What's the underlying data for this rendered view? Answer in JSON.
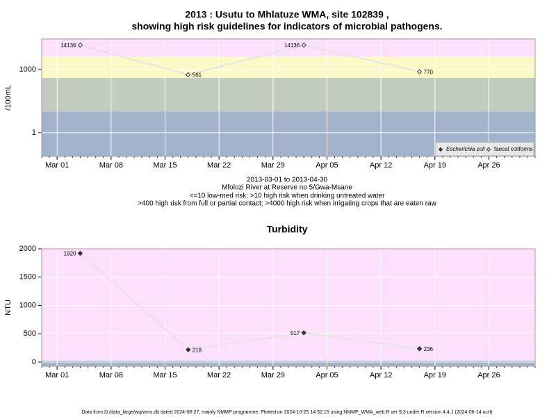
{
  "chart_data": [
    {
      "type": "scatter",
      "title": [
        "2013 : Usutu to Mhlatuze WMA, site 102839 ,",
        "showing high risk guidelines for indicators of microbial pathogens."
      ],
      "y_label": "/100mL",
      "log_y": true,
      "x": [
        "Mar 04",
        "Mar 18",
        "Apr 02",
        "Apr 17"
      ],
      "series": [
        {
          "name": "Escherichia coli",
          "marker": "filled",
          "color": "#333333",
          "values": [
            null,
            null,
            null,
            null
          ]
        },
        {
          "name": "faecal coliforms",
          "marker": "open",
          "color": "#333333",
          "values": [
            14136,
            561,
            14136,
            770
          ]
        }
      ],
      "xlim": [
        "Feb 27",
        "May 02"
      ],
      "xticks": [
        "Mar 01",
        "Mar 08",
        "Mar 15",
        "Mar 22",
        "Mar 29",
        "Apr 05",
        "Apr 12",
        "Apr 19",
        "Apr 26"
      ],
      "ylim": [
        0.075,
        28000
      ],
      "yticks": [
        1,
        1000
      ],
      "bands": [
        {
          "range": [
            0.075,
            10
          ],
          "color": "#a3b3cc"
        },
        {
          "range": [
            10,
            400
          ],
          "color": "#c4ccc1"
        },
        {
          "range": [
            400,
            4000
          ],
          "color": "#fdf9c6"
        },
        {
          "range": [
            4000,
            28000
          ],
          "color": "#fde0fc"
        }
      ],
      "legend": "bottom-right",
      "grid": true
    },
    {
      "type": "scatter",
      "title": [
        "Turbidity"
      ],
      "y_label": "NTU",
      "log_y": false,
      "x": [
        "Mar 04",
        "Mar 18",
        "Apr 02",
        "Apr 17"
      ],
      "series": [
        {
          "name": "Turbidity",
          "marker": "filled",
          "color": "#333333",
          "values": [
            1920,
            218,
            517,
            236
          ]
        }
      ],
      "xlim": [
        "Feb 27",
        "May 02"
      ],
      "xticks": [
        "Mar 01",
        "Mar 08",
        "Mar 15",
        "Mar 22",
        "Mar 29",
        "Apr 05",
        "Apr 12",
        "Apr 19",
        "Apr 26"
      ],
      "ylim": [
        -74,
        2000
      ],
      "yticks": [
        0,
        500,
        1000,
        1500,
        2000
      ],
      "bands": [
        {
          "range": [
            -74,
            25
          ],
          "color": "#a3b3cc"
        },
        {
          "range": [
            25,
            2000
          ],
          "color": "#fde0fc"
        }
      ],
      "legend": "none",
      "grid": true
    }
  ],
  "notes": [
    "2013-03-01 to 2013-04-30",
    "Mfolozi River at Reserve no 5/Gwa-Msane",
    "<=10 low-med risk; >10 high risk when drinking untreated water",
    ">400 high risk from full or partial contact; >4000 high risk when irrigating crops that are eaten raw"
  ],
  "footer": "Data from D:/data_large/wq/wms.db dated 2024-08-27, mainly NMMP programme. Plotted on 2024-10-25 14:52:15 using NMMP_WMA_web.R ver 9.3 under R version 4.4.1 (2024-06-14 ucrt)"
}
